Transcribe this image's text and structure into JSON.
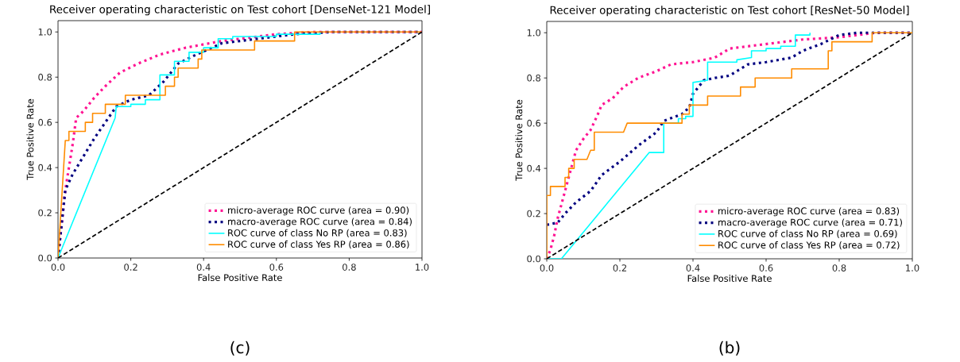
{
  "chart_data": [
    {
      "type": "line",
      "title": "Receiver operating characteristic on Test cohort [DenseNet-121 Model]",
      "xlabel": "False Positive Rate",
      "ylabel": "True Positive Rate",
      "xlim": [
        0,
        1
      ],
      "ylim": [
        0,
        1.05
      ],
      "xticks": [
        {
          "value": 0,
          "label": "0.0"
        },
        {
          "value": 0.2,
          "label": "0.2"
        },
        {
          "value": 0.4,
          "label": "0.4"
        },
        {
          "value": 0.6,
          "label": "0.6"
        },
        {
          "value": 0.8,
          "label": "0.8"
        },
        {
          "value": 1,
          "label": "1.0"
        }
      ],
      "yticks": [
        {
          "value": 0,
          "label": "0.0"
        },
        {
          "value": 0.2,
          "label": "0.2"
        },
        {
          "value": 0.4,
          "label": "0.4"
        },
        {
          "value": 0.6,
          "label": "0.6"
        },
        {
          "value": 0.8,
          "label": "0.8"
        },
        {
          "value": 1,
          "label": "1.0"
        }
      ],
      "legend": "bottom right",
      "annotations": [
        "(c)"
      ],
      "series": [
        {
          "name": "micro-average ROC curve (area = 0.90)",
          "color": "#ff1493",
          "line_style": "dotted",
          "x": [
            0,
            0.01,
            0.02,
            0.03,
            0.04,
            0.05,
            0.07,
            0.1,
            0.13,
            0.17,
            0.22,
            0.28,
            0.35,
            0.45,
            0.6,
            0.7,
            1
          ],
          "values": [
            0,
            0.15,
            0.3,
            0.4,
            0.5,
            0.62,
            0.65,
            0.71,
            0.76,
            0.82,
            0.86,
            0.9,
            0.93,
            0.96,
            0.99,
            1.0,
            1.0
          ]
        },
        {
          "name": "macro-average ROC curve (area = 0.84)",
          "color": "#000080",
          "line_style": "dotted",
          "x": [
            0,
            0.02,
            0.04,
            0.07,
            0.1,
            0.13,
            0.16,
            0.2,
            0.25,
            0.29,
            0.33,
            0.38,
            0.45,
            0.55,
            0.65,
            0.75,
            1
          ],
          "values": [
            0,
            0.3,
            0.37,
            0.45,
            0.53,
            0.6,
            0.67,
            0.7,
            0.72,
            0.78,
            0.86,
            0.9,
            0.95,
            0.97,
            0.99,
            1.0,
            1.0
          ]
        },
        {
          "name": "ROC curve of class No RP (area = 0.83)",
          "color": "#00ffff",
          "line_style": "solid",
          "x": [
            0,
            0.157,
            0.16,
            0.2,
            0.2,
            0.24,
            0.24,
            0.28,
            0.28,
            0.32,
            0.32,
            0.36,
            0.36,
            0.4,
            0.4,
            0.44,
            0.44,
            0.48,
            0.48,
            0.6,
            0.6,
            0.72,
            0.72
          ],
          "values": [
            0,
            0.62,
            0.67,
            0.67,
            0.68,
            0.68,
            0.7,
            0.7,
            0.81,
            0.81,
            0.87,
            0.87,
            0.91,
            0.91,
            0.93,
            0.93,
            0.97,
            0.97,
            0.98,
            0.98,
            0.99,
            0.99,
            1.0
          ]
        },
        {
          "name": "ROC curve of class Yes RP (area = 0.86)",
          "color": "#ff8c00",
          "line_style": "solid",
          "x": [
            0,
            0.02,
            0.03,
            0.03,
            0.075,
            0.075,
            0.095,
            0.095,
            0.13,
            0.13,
            0.185,
            0.185,
            0.295,
            0.295,
            0.32,
            0.32,
            0.33,
            0.33,
            0.385,
            0.385,
            0.395,
            0.395,
            0.54,
            0.54,
            0.65,
            0.65,
            1
          ],
          "values": [
            0,
            0.52,
            0.52,
            0.56,
            0.56,
            0.6,
            0.6,
            0.64,
            0.64,
            0.68,
            0.68,
            0.72,
            0.72,
            0.76,
            0.76,
            0.8,
            0.8,
            0.84,
            0.84,
            0.88,
            0.88,
            0.92,
            0.92,
            0.96,
            0.96,
            1.0,
            1.0
          ]
        },
        {
          "color": "#000000",
          "line_style": "dashed",
          "x": [
            0,
            1
          ],
          "values": [
            0,
            1
          ]
        }
      ]
    },
    {
      "type": "line",
      "title": "Receiver operating characteristic on Test cohort [ResNet-50 Model]",
      "xlabel": "False Positive Rate",
      "ylabel": "True Positive Rate",
      "xlim": [
        0,
        1
      ],
      "ylim": [
        0,
        1.05
      ],
      "xticks": [
        {
          "value": 0,
          "label": "0.0"
        },
        {
          "value": 0.2,
          "label": "0.2"
        },
        {
          "value": 0.4,
          "label": "0.4"
        },
        {
          "value": 0.6,
          "label": "0.6"
        },
        {
          "value": 0.8,
          "label": "0.8"
        },
        {
          "value": 1,
          "label": "1.0"
        }
      ],
      "yticks": [
        {
          "value": 0,
          "label": "0.0"
        },
        {
          "value": 0.2,
          "label": "0.2"
        },
        {
          "value": 0.4,
          "label": "0.4"
        },
        {
          "value": 0.6,
          "label": "0.6"
        },
        {
          "value": 0.8,
          "label": "0.8"
        },
        {
          "value": 1,
          "label": "1.0"
        }
      ],
      "legend": "bottom right",
      "annotations": [
        "(b)"
      ],
      "series": [
        {
          "name": "micro-average ROC curve (area = 0.83)",
          "color": "#ff1493",
          "line_style": "dotted",
          "x": [
            0,
            0.01,
            0.02,
            0.03,
            0.05,
            0.06,
            0.07,
            0.08,
            0.1,
            0.12,
            0.14,
            0.15,
            0.18,
            0.21,
            0.25,
            0.3,
            0.34,
            0.4,
            0.46,
            0.5,
            0.6,
            0.7,
            0.8,
            0.9,
            1
          ],
          "values": [
            0,
            0.04,
            0.1,
            0.18,
            0.3,
            0.36,
            0.42,
            0.48,
            0.53,
            0.57,
            0.64,
            0.68,
            0.71,
            0.76,
            0.8,
            0.83,
            0.86,
            0.87,
            0.89,
            0.93,
            0.95,
            0.97,
            0.98,
            1.0,
            1.0
          ]
        },
        {
          "name": "macro-average ROC curve (area = 0.71)",
          "color": "#000080",
          "line_style": "dotted",
          "x": [
            0,
            0.03,
            0.05,
            0.08,
            0.12,
            0.15,
            0.2,
            0.25,
            0.3,
            0.32,
            0.37,
            0.39,
            0.4,
            0.43,
            0.46,
            0.5,
            0.55,
            0.6,
            0.67,
            0.7,
            0.75,
            0.8,
            0.85,
            1
          ],
          "values": [
            0.15,
            0.16,
            0.2,
            0.25,
            0.3,
            0.37,
            0.43,
            0.5,
            0.56,
            0.61,
            0.64,
            0.67,
            0.73,
            0.79,
            0.8,
            0.81,
            0.86,
            0.87,
            0.89,
            0.92,
            0.95,
            0.99,
            1.0,
            1.0
          ]
        },
        {
          "name": "ROC curve of class No RP (area = 0.69)",
          "color": "#00ffff",
          "line_style": "solid",
          "x": [
            0,
            0.04,
            0.28,
            0.32,
            0.32,
            0.36,
            0.36,
            0.38,
            0.38,
            0.4,
            0.4,
            0.44,
            0.44,
            0.52,
            0.52,
            0.56,
            0.56,
            0.6,
            0.6,
            0.64,
            0.64,
            0.68,
            0.68,
            0.72,
            0.72
          ],
          "values": [
            0,
            0,
            0.47,
            0.47,
            0.6,
            0.6,
            0.62,
            0.62,
            0.63,
            0.63,
            0.78,
            0.79,
            0.87,
            0.87,
            0.88,
            0.89,
            0.92,
            0.92,
            0.93,
            0.93,
            0.94,
            0.94,
            0.99,
            0.99,
            1.0
          ]
        },
        {
          "name": "ROC curve of class Yes RP (area = 0.72)",
          "color": "#ff8c00",
          "line_style": "solid",
          "x": [
            0,
            0,
            0.01,
            0.01,
            0.05,
            0.05,
            0.06,
            0.06,
            0.075,
            0.075,
            0.11,
            0.12,
            0.13,
            0.13,
            0.21,
            0.22,
            0.37,
            0.37,
            0.39,
            0.39,
            0.44,
            0.44,
            0.53,
            0.53,
            0.57,
            0.57,
            0.67,
            0.67,
            0.77,
            0.77,
            0.78,
            0.78,
            0.89,
            0.89,
            1
          ],
          "values": [
            0,
            0.28,
            0.28,
            0.32,
            0.32,
            0.36,
            0.36,
            0.4,
            0.4,
            0.44,
            0.44,
            0.48,
            0.48,
            0.56,
            0.56,
            0.6,
            0.6,
            0.64,
            0.64,
            0.68,
            0.68,
            0.72,
            0.72,
            0.76,
            0.76,
            0.8,
            0.8,
            0.84,
            0.84,
            0.92,
            0.92,
            0.96,
            0.96,
            1.0,
            1.0
          ]
        },
        {
          "color": "#000000",
          "line_style": "dashed",
          "x": [
            0,
            1
          ],
          "values": [
            0,
            1
          ]
        }
      ]
    }
  ]
}
